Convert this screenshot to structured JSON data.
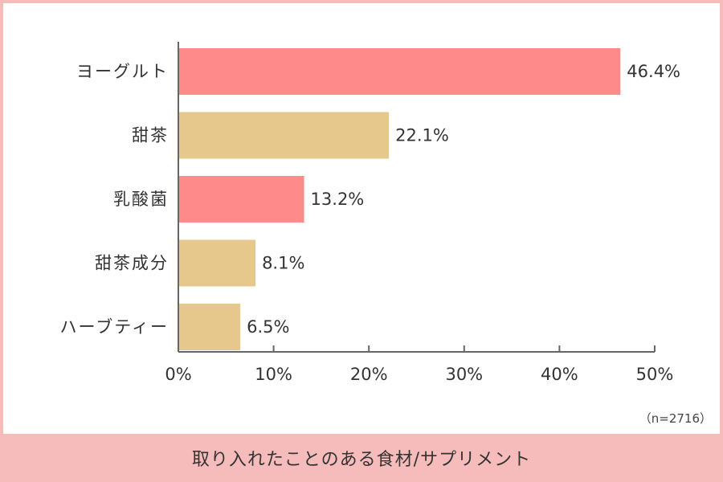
{
  "chart_data": {
    "type": "bar",
    "orientation": "horizontal",
    "categories": [
      "ヨーグルト",
      "甜茶",
      "乳酸菌",
      "甜茶成分",
      "ハーブティー"
    ],
    "values": [
      46.4,
      22.1,
      13.2,
      8.1,
      6.5
    ],
    "value_labels": [
      "46.4%",
      "22.1%",
      "13.2%",
      "8.1%",
      "6.5%"
    ],
    "bar_colors": [
      "#ff8a8a",
      "#e6c88c",
      "#ff8a8a",
      "#e6c88c",
      "#e6c88c"
    ],
    "xlim": [
      0,
      50
    ],
    "xticks": [
      0,
      10,
      20,
      30,
      40,
      50
    ],
    "xtick_labels": [
      "0%",
      "10%",
      "20%",
      "30%",
      "40%",
      "50%"
    ],
    "grid": false
  },
  "note": "（n=2716）",
  "caption": "取り入れたことのある食材/サプリメント",
  "colors": {
    "frame": "#f6bcbc",
    "axis": "#666666",
    "text": "#333333"
  }
}
